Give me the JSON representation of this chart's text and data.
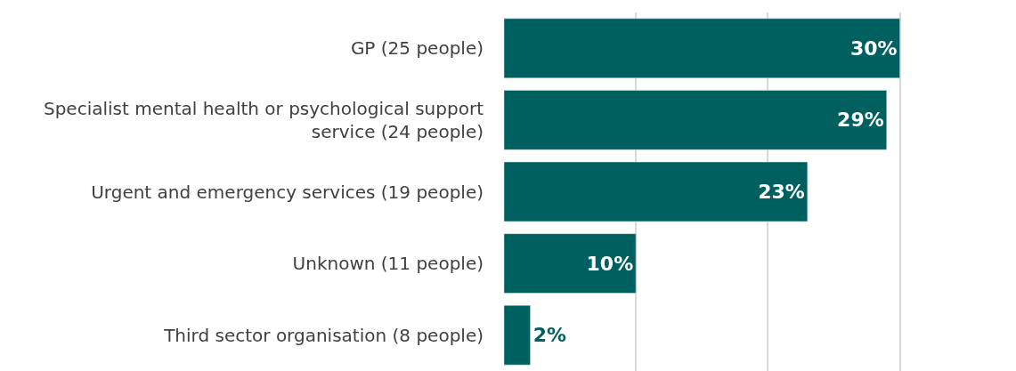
{
  "chart_data": {
    "type": "bar",
    "orientation": "horizontal",
    "categories": [
      "GP (25 people)",
      "Specialist mental health or psychological support service (24 people)",
      "Urgent and emergency services (19 people)",
      "Unknown (11 people)",
      "Third sector organisation (8 people)"
    ],
    "values": [
      30,
      29,
      23,
      10,
      2
    ],
    "value_labels": [
      "30%",
      "29%",
      "23%",
      "10%",
      "2%"
    ],
    "color": "#006060",
    "xlim": [
      0,
      38.8
    ],
    "xticks": [
      {
        "value": 10,
        "label": null
      },
      {
        "value": 20,
        "label": null
      },
      {
        "value": 30,
        "label": null
      }
    ],
    "grid": "x"
  }
}
